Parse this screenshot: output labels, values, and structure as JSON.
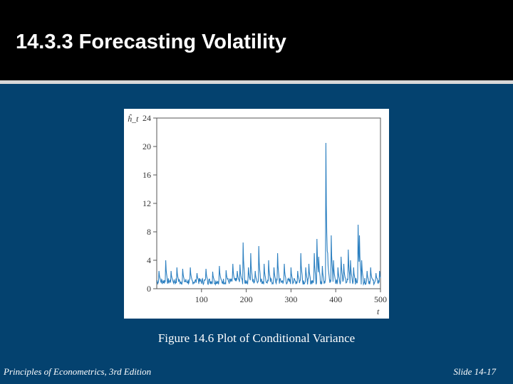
{
  "slide": {
    "title": "14.3.3  Forecasting Volatility",
    "caption": "Figure 14.6 Plot of Conditional Variance",
    "footer_left": "Principles of Econometrics, 3rd Edition",
    "footer_right": "Slide 14-17"
  },
  "colors": {
    "background": "#04426f",
    "title_bar": "#000000",
    "series_line": "#2b7fc0"
  },
  "chart_data": {
    "type": "line",
    "title": "",
    "ylabel": "ĥ_t",
    "xlabel": "t",
    "xlim": [
      0,
      500
    ],
    "ylim": [
      0,
      24
    ],
    "x_ticks": [
      100,
      200,
      300,
      400,
      500
    ],
    "y_ticks": [
      0,
      4,
      8,
      12,
      16,
      20,
      24
    ],
    "x_tick_labels": [
      "100",
      "200",
      "300",
      "400",
      "500"
    ],
    "y_tick_labels": [
      "0",
      "4",
      "8",
      "12",
      "16",
      "20",
      "24"
    ],
    "series": [
      {
        "name": "conditional variance",
        "baseline": 1.0,
        "spikes": [
          {
            "t": 5,
            "value": 2.5
          },
          {
            "t": 20,
            "value": 4.0
          },
          {
            "t": 32,
            "value": 2.5
          },
          {
            "t": 45,
            "value": 3.0
          },
          {
            "t": 58,
            "value": 2.8
          },
          {
            "t": 75,
            "value": 3.0
          },
          {
            "t": 90,
            "value": 2.2
          },
          {
            "t": 110,
            "value": 2.8
          },
          {
            "t": 125,
            "value": 2.4
          },
          {
            "t": 140,
            "value": 3.2
          },
          {
            "t": 155,
            "value": 2.6
          },
          {
            "t": 170,
            "value": 3.5
          },
          {
            "t": 180,
            "value": 2.5
          },
          {
            "t": 186,
            "value": 3.4
          },
          {
            "t": 193,
            "value": 6.5
          },
          {
            "t": 205,
            "value": 3.0
          },
          {
            "t": 210,
            "value": 5.0
          },
          {
            "t": 220,
            "value": 2.5
          },
          {
            "t": 228,
            "value": 6.0
          },
          {
            "t": 240,
            "value": 3.5
          },
          {
            "t": 250,
            "value": 4.0
          },
          {
            "t": 262,
            "value": 3.0
          },
          {
            "t": 270,
            "value": 5.0
          },
          {
            "t": 285,
            "value": 3.5
          },
          {
            "t": 300,
            "value": 3.0
          },
          {
            "t": 315,
            "value": 2.5
          },
          {
            "t": 322,
            "value": 5.0
          },
          {
            "t": 333,
            "value": 3.0
          },
          {
            "t": 340,
            "value": 3.5
          },
          {
            "t": 352,
            "value": 5.0
          },
          {
            "t": 358,
            "value": 7.0
          },
          {
            "t": 362,
            "value": 4.5
          },
          {
            "t": 370,
            "value": 3.2
          },
          {
            "t": 378,
            "value": 20.5
          },
          {
            "t": 382,
            "value": 5.0
          },
          {
            "t": 390,
            "value": 7.5
          },
          {
            "t": 395,
            "value": 4.0
          },
          {
            "t": 405,
            "value": 3.0
          },
          {
            "t": 412,
            "value": 4.5
          },
          {
            "t": 418,
            "value": 3.5
          },
          {
            "t": 428,
            "value": 5.5
          },
          {
            "t": 433,
            "value": 4.0
          },
          {
            "t": 440,
            "value": 3.0
          },
          {
            "t": 450,
            "value": 9.0
          },
          {
            "t": 453,
            "value": 7.5
          },
          {
            "t": 458,
            "value": 4.0
          },
          {
            "t": 470,
            "value": 2.5
          },
          {
            "t": 478,
            "value": 3.0
          },
          {
            "t": 490,
            "value": 2.2
          },
          {
            "t": 498,
            "value": 2.5
          }
        ]
      }
    ]
  }
}
